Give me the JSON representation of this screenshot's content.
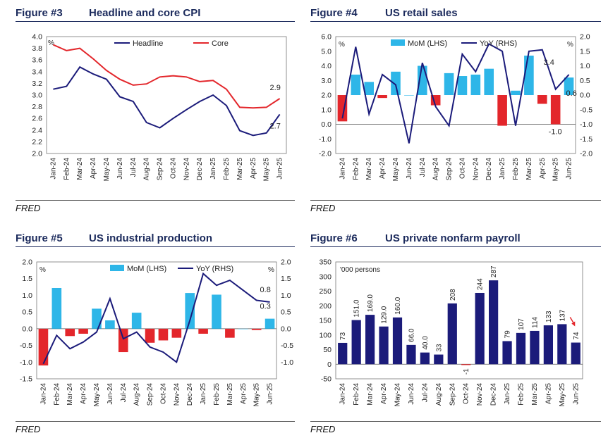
{
  "months": [
    "Jan-24",
    "Feb-24",
    "Mar-24",
    "Apr-24",
    "May-24",
    "Jun-24",
    "Jul-24",
    "Aug-24",
    "Sep-24",
    "Oct-24",
    "Nov-24",
    "Dec-24",
    "Jan-25",
    "Feb-25",
    "Mar-25",
    "Apr-25",
    "May-25",
    "Jun-25"
  ],
  "colors": {
    "navy": "#1b1b7a",
    "red": "#e3262b",
    "cyan": "#2eb6e8",
    "title": "#1b2a5c"
  },
  "figures": [
    {
      "label": "Figure #3",
      "title": "Headline and core CPI",
      "source": "FRED"
    },
    {
      "label": "Figure #4",
      "title": "US retail sales",
      "source": "FRED"
    },
    {
      "label": "Figure #5",
      "title": "US industrial production",
      "source": "FRED"
    },
    {
      "label": "Figure #6",
      "title": "US private nonfarm payroll",
      "source": "FRED"
    }
  ],
  "chart_data": [
    {
      "type": "line",
      "title": "Headline and core CPI",
      "unit_label": "%",
      "ylim": [
        2.0,
        4.0
      ],
      "yticks": [
        2.0,
        2.2,
        2.4,
        2.6,
        2.8,
        3.0,
        3.2,
        3.4,
        3.6,
        3.8,
        4.0
      ],
      "ytick_labels": [
        "2.0",
        "2.2",
        "2.4",
        "2.6",
        "2.8",
        "3.0",
        "3.2",
        "3.4",
        "3.6",
        "3.8",
        "4.0"
      ],
      "legend_position": "top",
      "series": [
        {
          "name": "Headline",
          "color": "navy",
          "values": [
            3.1,
            3.15,
            3.48,
            3.36,
            3.27,
            2.97,
            2.89,
            2.53,
            2.44,
            2.6,
            2.75,
            2.89,
            3.0,
            2.82,
            2.39,
            2.31,
            2.35,
            2.67
          ]
        },
        {
          "name": "Core",
          "color": "red",
          "values": [
            3.86,
            3.76,
            3.8,
            3.62,
            3.42,
            3.27,
            3.17,
            3.19,
            3.31,
            3.33,
            3.31,
            3.23,
            3.25,
            3.1,
            2.79,
            2.78,
            2.79,
            2.94
          ]
        }
      ],
      "annotations": [
        "2.9",
        "2.7"
      ]
    },
    {
      "type": "bar+line",
      "title": "US retail sales",
      "unit_label_left": "%",
      "unit_label_right": "%",
      "ylim": [
        -2.0,
        6.0
      ],
      "yticks": [
        -2.0,
        -1.0,
        0.0,
        1.0,
        2.0,
        3.0,
        4.0,
        5.0,
        6.0
      ],
      "ytick_labels": [
        "-2.0",
        "-1.0",
        "0.0",
        "1.0",
        "2.0",
        "3.0",
        "4.0",
        "5.0",
        "6.0"
      ],
      "y2lim": [
        -2.0,
        2.0
      ],
      "y2ticks": [
        -2.0,
        -1.5,
        -1.0,
        -0.5,
        0.0,
        0.5,
        1.0,
        1.5,
        2.0
      ],
      "y2tick_labels": [
        "-2.0",
        "-1.5",
        "-1.0",
        "-0.5",
        "0.0",
        "0.5",
        "1.0",
        "1.5",
        "2.0"
      ],
      "bar_baseline": 2.0,
      "legend_position": "top",
      "series": [
        {
          "name": "MoM (LHS)",
          "axis": "right",
          "kind": "bar",
          "values": [
            -0.9,
            0.7,
            0.45,
            -0.1,
            0.8,
            0.0,
            1.0,
            -0.35,
            0.75,
            0.65,
            0.7,
            0.9,
            -1.05,
            0.15,
            1.35,
            -0.3,
            -1.0,
            0.6
          ]
        },
        {
          "name": "YoY (RHS)",
          "axis": "left",
          "kind": "line",
          "values": [
            0.4,
            5.3,
            0.7,
            3.4,
            2.7,
            -1.3,
            4.2,
            1.2,
            -0.1,
            4.8,
            3.6,
            5.5,
            5.0,
            -0.1,
            5.0,
            5.1,
            2.4,
            3.4
          ]
        }
      ],
      "annotations": [
        "3.4",
        "0.6",
        "-1.0"
      ]
    },
    {
      "type": "bar+line",
      "title": "US industrial production",
      "unit_label_left": "%",
      "unit_label_right": "%",
      "ylim": [
        -1.5,
        2.0
      ],
      "yticks": [
        -1.5,
        -1.0,
        -0.5,
        0.0,
        0.5,
        1.0,
        1.5,
        2.0
      ],
      "ytick_labels": [
        "-1.5",
        "-1.0",
        "-0.5",
        "0.0",
        "0.5",
        "1.0",
        "1.5",
        "2.0"
      ],
      "y2lim": [
        -1.5,
        2.0
      ],
      "y2ticks": [
        -1.0,
        -0.5,
        0.0,
        0.5,
        1.0,
        1.5,
        2.0
      ],
      "y2tick_labels": [
        "-1.0",
        "-0.5",
        "0.0",
        "0.5",
        "1.0",
        "1.5",
        "2.0"
      ],
      "bar_baseline": 0.0,
      "legend_position": "top",
      "series": [
        {
          "name": "MoM (LHS)",
          "axis": "left",
          "kind": "bar",
          "values": [
            -1.1,
            1.22,
            -0.22,
            -0.15,
            0.6,
            0.25,
            -0.7,
            0.48,
            -0.42,
            -0.35,
            -0.27,
            1.07,
            -0.15,
            1.02,
            -0.27,
            0.0,
            -0.04,
            0.3
          ]
        },
        {
          "name": "YoY (RHS)",
          "axis": "right",
          "kind": "line",
          "values": [
            -1.05,
            -0.2,
            -0.6,
            -0.4,
            -0.1,
            0.9,
            -0.3,
            -0.1,
            -0.55,
            -0.7,
            -1.0,
            0.25,
            1.65,
            1.3,
            1.45,
            1.15,
            0.85,
            0.8
          ]
        }
      ],
      "annotations": [
        "0.8",
        "0.3"
      ]
    },
    {
      "type": "bar",
      "title": "US private nonfarm payroll",
      "unit_label": "'000 persons",
      "ylim": [
        -50,
        350
      ],
      "yticks": [
        -50,
        0,
        50,
        100,
        150,
        200,
        250,
        300,
        350
      ],
      "ytick_labels": [
        "-50",
        "0",
        "50",
        "100",
        "150",
        "200",
        "250",
        "300",
        "350"
      ],
      "series": [
        {
          "name": "",
          "color": "navy",
          "values": [
            73,
            151,
            169,
            129,
            160,
            66,
            40,
            33,
            208,
            -1,
            244,
            287,
            79,
            107,
            114,
            133,
            137,
            74
          ],
          "labels": [
            "73",
            "151.0",
            "169.0",
            "129.0",
            "160.0",
            "66.0",
            "40.0",
            "33",
            "208",
            "-1",
            "244",
            "287",
            "79",
            "107",
            "114",
            "133",
            "137",
            "74"
          ]
        }
      ]
    }
  ]
}
